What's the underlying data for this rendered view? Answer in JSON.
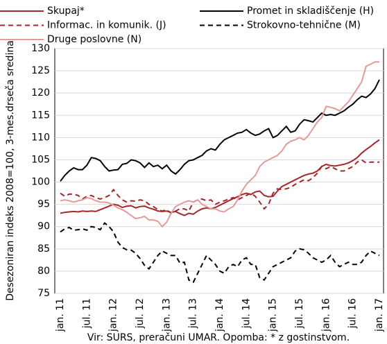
{
  "chart_data": {
    "type": "line",
    "y_label": "Desezoniran indeks 2008=100, 3-mes.drseča sredina",
    "note": "Vir: SURS, preračuni UMAR. Opomba: * z gostinstvom.",
    "categories": [
      "jan. 11",
      null,
      null,
      null,
      null,
      null,
      "jul. 11",
      null,
      null,
      null,
      null,
      null,
      "jan. 12",
      null,
      null,
      null,
      null,
      null,
      "jul. 12",
      null,
      null,
      null,
      null,
      null,
      "jan. 13",
      null,
      null,
      null,
      null,
      null,
      "jul. 13",
      null,
      null,
      null,
      null,
      null,
      "jan. 14",
      null,
      null,
      null,
      null,
      null,
      "jul. 14",
      null,
      null,
      null,
      null,
      null,
      "jan. 15",
      null,
      null,
      null,
      null,
      null,
      "jul. 15",
      null,
      null,
      null,
      null,
      null,
      "jan. 16",
      null,
      null,
      null,
      null,
      null,
      "jul. 16",
      null,
      null,
      null,
      null,
      null,
      "jan. 17"
    ],
    "ylim": [
      75,
      130
    ],
    "yticks": [
      75,
      80,
      85,
      90,
      95,
      100,
      105,
      110,
      115,
      120,
      125,
      130
    ],
    "grid": true,
    "series": [
      {
        "name": "Skupaj*",
        "color": "#a3262a",
        "dashed": false,
        "values": [
          93.0,
          93.2,
          93.3,
          93.4,
          93.3,
          93.5,
          93.4,
          93.5,
          93.4,
          93.8,
          94.2,
          94.6,
          95.0,
          94.8,
          94.3,
          94.6,
          94.7,
          94.2,
          94.5,
          94.6,
          94.2,
          93.9,
          93.5,
          93.4,
          93.5,
          93.2,
          93.4,
          92.9,
          92.5,
          93.0,
          92.8,
          93.5,
          94.0,
          94.2,
          94.0,
          94.3,
          94.8,
          95.3,
          95.8,
          96.3,
          96.7,
          97.2,
          97.5,
          97.2,
          97.8,
          98.0,
          97.0,
          96.7,
          96.8,
          98.0,
          99.0,
          99.5,
          100.0,
          100.5,
          101.0,
          101.5,
          101.8,
          102.0,
          102.5,
          103.5,
          104.0,
          103.7,
          103.6,
          103.8,
          104.0,
          104.3,
          104.8,
          105.5,
          106.5,
          107.3,
          108.0,
          108.8,
          109.5
        ]
      },
      {
        "name": "Promet in skladiščenje (H)",
        "color": "#000000",
        "dashed": false,
        "values": [
          100.2,
          101.5,
          102.5,
          103.2,
          102.8,
          102.8,
          103.8,
          105.5,
          105.3,
          104.8,
          103.5,
          102.5,
          102.7,
          102.8,
          104.0,
          104.2,
          105.0,
          104.8,
          104.3,
          103.3,
          104.3,
          103.5,
          103.8,
          103.0,
          103.8,
          102.5,
          101.8,
          102.8,
          104.0,
          104.8,
          105.0,
          105.5,
          106.0,
          107.0,
          107.5,
          107.2,
          108.5,
          109.5,
          110.0,
          110.5,
          111.0,
          111.2,
          111.8,
          111.0,
          110.5,
          110.8,
          111.5,
          112.0,
          110.0,
          110.5,
          111.5,
          112.5,
          111.2,
          111.5,
          113.0,
          114.0,
          113.8,
          113.5,
          114.5,
          115.5,
          115.0,
          115.2,
          115.0,
          115.5,
          116.0,
          116.8,
          117.5,
          118.5,
          119.3,
          119.0,
          119.8,
          121.0,
          123.0
        ]
      },
      {
        "name": "Informac. in komunik. (J)",
        "color": "#a3262a",
        "dashed": true,
        "values": [
          97.5,
          96.8,
          97.3,
          97.3,
          97.0,
          96.2,
          96.8,
          97.0,
          96.5,
          96.2,
          96.5,
          97.0,
          98.3,
          97.0,
          96.0,
          95.5,
          95.8,
          95.7,
          96.0,
          95.8,
          95.0,
          94.5,
          93.8,
          93.5,
          93.8,
          93.0,
          93.5,
          94.0,
          94.0,
          93.5,
          95.5,
          96.0,
          96.2,
          95.8,
          96.0,
          95.0,
          95.5,
          95.8,
          96.2,
          96.5,
          96.0,
          96.5,
          97.0,
          97.5,
          96.8,
          95.5,
          94.0,
          95.0,
          97.5,
          98.5,
          98.3,
          98.5,
          98.8,
          99.5,
          100.0,
          100.5,
          100.3,
          101.0,
          102.0,
          103.5,
          103.0,
          103.5,
          103.0,
          102.5,
          102.5,
          103.0,
          103.5,
          104.5,
          105.0,
          104.3,
          104.5,
          104.5,
          104.5
        ]
      },
      {
        "name": "Strokovno-tehnične (M)",
        "color": "#000000",
        "dashed": true,
        "values": [
          88.8,
          89.5,
          89.8,
          89.2,
          89.3,
          89.5,
          89.2,
          90.0,
          89.8,
          89.3,
          90.8,
          90.0,
          88.8,
          86.5,
          85.3,
          84.8,
          84.7,
          84.0,
          82.8,
          81.3,
          80.5,
          82.0,
          83.5,
          84.5,
          84.0,
          83.5,
          83.5,
          81.8,
          82.0,
          78.0,
          77.5,
          79.5,
          81.5,
          83.5,
          82.5,
          81.5,
          80.0,
          79.5,
          81.0,
          81.5,
          81.0,
          82.5,
          83.0,
          81.5,
          81.5,
          78.5,
          78.0,
          79.5,
          81.0,
          81.5,
          82.0,
          82.5,
          83.0,
          84.5,
          85.0,
          84.8,
          84.0,
          83.0,
          82.5,
          82.0,
          82.5,
          83.5,
          82.0,
          81.0,
          81.5,
          82.0,
          81.5,
          81.5,
          82.0,
          83.5,
          84.5,
          84.0,
          83.5
        ]
      },
      {
        "name": "Druge poslovne (N)",
        "color": "#e59a9a",
        "dashed": false,
        "values": [
          95.8,
          96.0,
          95.8,
          95.5,
          95.8,
          96.0,
          96.5,
          96.3,
          95.8,
          95.5,
          95.5,
          95.3,
          94.8,
          94.2,
          93.8,
          93.2,
          92.5,
          91.8,
          92.0,
          92.3,
          91.5,
          91.5,
          91.2,
          90.0,
          91.0,
          93.0,
          94.5,
          95.0,
          95.5,
          95.8,
          95.5,
          96.0,
          95.0,
          94.5,
          94.0,
          94.0,
          93.5,
          93.3,
          94.0,
          94.5,
          96.0,
          98.0,
          99.5,
          100.5,
          101.5,
          103.5,
          104.5,
          105.0,
          105.5,
          106.0,
          107.0,
          108.5,
          109.2,
          109.5,
          110.0,
          109.5,
          110.5,
          112.0,
          113.5,
          114.5,
          117.0,
          116.8,
          116.5,
          116.0,
          117.0,
          118.0,
          119.5,
          121.0,
          122.5,
          126.0,
          126.5,
          127.0,
          127.0
        ]
      }
    ]
  }
}
